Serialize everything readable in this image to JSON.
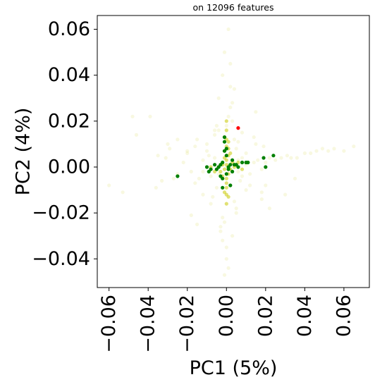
{
  "chart_data": {
    "type": "scatter",
    "title": "on 12096 features",
    "xlabel": "PC1 (5%)",
    "ylabel": "PC2 (4%)",
    "xlim": [
      -0.066,
      0.073
    ],
    "ylim": [
      -0.0525,
      0.066
    ],
    "grid": false,
    "xticks": [
      -0.06,
      -0.04,
      -0.02,
      0.0,
      0.02,
      0.04,
      0.06
    ],
    "xtick_labels": [
      "−0.06",
      "−0.04",
      "−0.02",
      "0.00",
      "0.02",
      "0.04",
      "0.06"
    ],
    "yticks": [
      -0.04,
      -0.02,
      0.0,
      0.02,
      0.04,
      0.06
    ],
    "ytick_labels": [
      "−0.04",
      "−0.02",
      "0.00",
      "0.02",
      "0.04",
      "0.06"
    ],
    "colors": {
      "background": "#c8c800",
      "highlight": "#008000",
      "special": "#ff0000"
    },
    "series": [
      {
        "role": "background",
        "color": "#c8c800",
        "opacity": 0.12,
        "x": [
          -0.06,
          -0.053,
          -0.048,
          -0.046,
          -0.039,
          -0.036,
          -0.033,
          -0.031,
          -0.029,
          -0.027,
          -0.025,
          -0.022,
          -0.02,
          -0.018,
          -0.016,
          -0.014,
          -0.012,
          -0.01,
          -0.008,
          -0.006,
          -0.004,
          -0.002,
          0.0,
          0.002,
          0.004,
          0.006,
          0.008,
          0.01,
          0.012,
          0.014,
          0.016,
          0.018,
          0.02,
          0.022,
          0.025,
          0.028,
          0.031,
          0.033,
          0.036,
          0.04,
          0.043,
          0.046,
          0.049,
          0.052,
          0.055,
          0.06,
          0.065,
          -0.01,
          -0.012,
          -0.015,
          0.01,
          0.014,
          0.018,
          -0.005,
          0.005,
          -0.008,
          0.008,
          -0.02,
          0.02,
          -0.025,
          0.022,
          -0.03,
          0.03,
          -0.035,
          0.035,
          -0.015,
          0.015,
          -0.004,
          0.004,
          -0.002,
          0.002,
          -0.001,
          0.001,
          0.003,
          -0.003,
          0.0,
          0.0,
          0.001,
          -0.001,
          0.002,
          -0.002,
          0.003,
          0.004,
          -0.004,
          0.005,
          -0.005,
          0.006,
          0.007,
          -0.006,
          -0.007,
          0.002,
          -0.002,
          0.001,
          -0.001,
          0.0,
          0.003,
          -0.003,
          0.004,
          0.006,
          0.008,
          0.01,
          -0.009,
          0.012,
          -0.012,
          0.005,
          -0.006,
          0.015,
          -0.016,
          0.018,
          0.019,
          -0.018
        ],
        "y": [
          -0.008,
          -0.011,
          0.022,
          0.014,
          0.022,
          -0.009,
          -0.006,
          0.004,
          0.008,
          -0.005,
          -0.003,
          0.002,
          0.006,
          -0.002,
          0.009,
          -0.005,
          0.003,
          0.007,
          -0.004,
          0.004,
          -0.003,
          0.001,
          0.0,
          -0.001,
          0.002,
          -0.002,
          0.004,
          0.001,
          -0.003,
          0.002,
          0.003,
          -0.001,
          0.002,
          0.004,
          0.003,
          0.004,
          0.005,
          0.004,
          0.004,
          0.006,
          0.006,
          0.007,
          0.008,
          0.007,
          0.008,
          0.007,
          0.009,
          0.01,
          -0.012,
          0.012,
          -0.01,
          0.013,
          -0.014,
          0.018,
          -0.02,
          -0.016,
          0.015,
          0.007,
          -0.008,
          0.012,
          -0.018,
          0.01,
          -0.012,
          0.005,
          -0.005,
          -0.025,
          0.024,
          0.03,
          0.034,
          0.04,
          0.045,
          0.05,
          0.06,
          -0.03,
          -0.028,
          -0.035,
          -0.04,
          -0.044,
          -0.047,
          0.026,
          -0.022,
          0.02,
          -0.015,
          0.016,
          0.008,
          -0.009,
          0.011,
          -0.006,
          0.014,
          -0.013,
          0.035,
          -0.032,
          0.022,
          -0.024,
          0.018,
          0.028,
          -0.026,
          0.012,
          0.003,
          -0.004,
          0.006,
          0.005,
          -0.008,
          -0.002,
          -0.018,
          0.016,
          0.01,
          -0.007,
          -0.011,
          0.009,
          -0.021
        ]
      },
      {
        "role": "dense-core",
        "color": "#c8c800",
        "opacity": 0.55,
        "x": [
          0.0,
          0.0,
          -0.001,
          0.001,
          0.0,
          -0.001,
          0.001,
          0.0,
          0.0,
          -0.001,
          0.001,
          0.0,
          0.0,
          0.0,
          -0.001,
          0.001,
          0.0,
          -0.004,
          -0.002,
          0.002,
          0.004,
          -0.006,
          0.006,
          -0.008,
          0.008,
          0.003,
          -0.003,
          0.0,
          0.001,
          -0.001,
          0.002,
          -0.002,
          0.0
        ],
        "y": [
          0.02,
          0.016,
          0.013,
          0.011,
          0.009,
          0.007,
          0.005,
          0.003,
          0.001,
          -0.001,
          -0.003,
          -0.005,
          -0.007,
          -0.009,
          -0.011,
          -0.013,
          -0.016,
          0.0,
          0.001,
          -0.001,
          0.0,
          -0.002,
          0.002,
          0.0,
          -0.001,
          0.002,
          -0.002,
          0.012,
          0.008,
          0.004,
          0.006,
          -0.004,
          -0.012
        ]
      },
      {
        "role": "highlight",
        "color": "#008000",
        "opacity": 1.0,
        "x": [
          -0.025,
          -0.01,
          -0.009,
          -0.008,
          -0.006,
          -0.005,
          -0.004,
          -0.003,
          -0.002,
          -0.001,
          -0.001,
          0.0,
          0.0,
          0.001,
          0.001,
          0.002,
          0.003,
          0.003,
          0.004,
          0.005,
          0.006,
          0.008,
          0.01,
          0.011,
          0.019,
          0.02,
          0.024,
          -0.002,
          -0.002,
          0.0,
          -0.001,
          0.002,
          -0.003
        ],
        "y": [
          -0.004,
          0.0,
          -0.002,
          -0.001,
          0.001,
          -0.001,
          0.0,
          -0.004,
          -0.005,
          0.013,
          0.011,
          0.008,
          0.005,
          0.0,
          -0.001,
          0.001,
          0.003,
          -0.002,
          0.001,
          0.001,
          0.0,
          0.002,
          0.002,
          0.002,
          0.004,
          0.0,
          0.005,
          -0.009,
          0.002,
          -0.003,
          0.007,
          -0.008,
          0.001
        ]
      },
      {
        "role": "special",
        "color": "#ff0000",
        "opacity": 1.0,
        "x": [
          0.006
        ],
        "y": [
          0.017
        ]
      }
    ]
  }
}
